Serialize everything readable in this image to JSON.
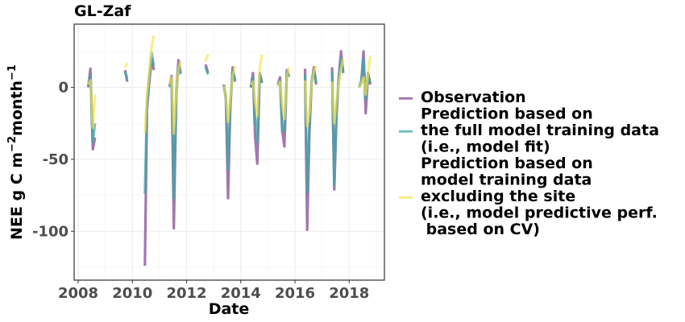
{
  "chart_data": {
    "type": "line",
    "title": "GL-Zaf",
    "xlabel": "Date",
    "ylabel": {
      "main": "NEE g C m",
      "sup1": "−2",
      "mid": "month",
      "sup2": "−1"
    },
    "xlim": [
      2007.85,
      2019.3
    ],
    "ylim": [
      -134,
      44
    ],
    "x_ticks": [
      2008,
      2010,
      2012,
      2014,
      2016,
      2018
    ],
    "x_tick_labels": [
      "2008",
      "2010",
      "2012",
      "2014",
      "2016",
      "2018"
    ],
    "y_ticks": [
      0,
      -50,
      -100
    ],
    "y_tick_labels": [
      "0",
      "-50",
      "-100"
    ],
    "grid": true,
    "legend_position": "right",
    "series": [
      {
        "name": "Observation",
        "color": "#7b3f8c",
        "opacity": 0.7,
        "segments": [
          [
            [
              2008.37,
              0
            ],
            [
              2008.45,
              13
            ],
            [
              2008.54,
              -43
            ],
            [
              2008.62,
              -35
            ]
          ],
          [
            [
              2009.73,
              12
            ],
            [
              2009.81,
              4
            ]
          ],
          [
            [
              2010.46,
              -124
            ],
            [
              2010.54,
              -15
            ],
            [
              2010.62,
              3
            ],
            [
              2010.71,
              20
            ],
            [
              2010.79,
              12
            ]
          ],
          [
            [
              2011.37,
              1
            ],
            [
              2011.45,
              8
            ],
            [
              2011.53,
              -98
            ],
            [
              2011.62,
              -2
            ],
            [
              2011.7,
              19
            ],
            [
              2011.78,
              10
            ]
          ],
          [
            [
              2012.7,
              16
            ],
            [
              2012.79,
              10
            ]
          ],
          [
            [
              2013.37,
              2
            ],
            [
              2013.45,
              -6
            ],
            [
              2013.53,
              -77
            ],
            [
              2013.61,
              -15
            ],
            [
              2013.7,
              14
            ],
            [
              2013.79,
              4
            ]
          ],
          [
            [
              2014.37,
              0
            ],
            [
              2014.45,
              10
            ],
            [
              2014.53,
              -35
            ],
            [
              2014.61,
              -53
            ],
            [
              2014.7,
              10
            ],
            [
              2014.78,
              3
            ]
          ],
          [
            [
              2015.37,
              2
            ],
            [
              2015.45,
              7
            ],
            [
              2015.53,
              -30
            ],
            [
              2015.61,
              -41
            ],
            [
              2015.7,
              12
            ],
            [
              2015.78,
              8
            ]
          ],
          [
            [
              2016.37,
              13
            ],
            [
              2016.45,
              -99
            ],
            [
              2016.53,
              -32
            ],
            [
              2016.61,
              3
            ],
            [
              2016.7,
              14
            ],
            [
              2016.78,
              2
            ]
          ],
          [
            [
              2017.37,
              14
            ],
            [
              2017.45,
              -71
            ],
            [
              2017.53,
              -20
            ],
            [
              2017.61,
              6
            ],
            [
              2017.7,
              25
            ],
            [
              2017.78,
              10
            ]
          ],
          [
            [
              2018.37,
              0
            ],
            [
              2018.45,
              4
            ],
            [
              2018.53,
              25
            ],
            [
              2018.61,
              -18
            ],
            [
              2018.7,
              10
            ],
            [
              2018.78,
              2
            ]
          ]
        ]
      },
      {
        "name": "Prediction based on the full model training data (i.e., model fit)",
        "color": "#3aa6a6",
        "opacity": 0.7,
        "segments": [
          [
            [
              2008.37,
              1
            ],
            [
              2008.45,
              8
            ],
            [
              2008.54,
              -38
            ],
            [
              2008.62,
              -25
            ]
          ],
          [
            [
              2009.73,
              11
            ],
            [
              2009.81,
              6
            ]
          ],
          [
            [
              2010.46,
              -74
            ],
            [
              2010.54,
              -12
            ],
            [
              2010.62,
              8
            ],
            [
              2010.71,
              24
            ],
            [
              2010.79,
              15
            ]
          ],
          [
            [
              2011.37,
              0
            ],
            [
              2011.45,
              4
            ],
            [
              2011.53,
              -77
            ],
            [
              2011.62,
              -6
            ],
            [
              2011.7,
              15
            ],
            [
              2011.78,
              9
            ]
          ],
          [
            [
              2012.7,
              14
            ],
            [
              2012.79,
              9
            ]
          ],
          [
            [
              2013.37,
              1
            ],
            [
              2013.45,
              -8
            ],
            [
              2013.53,
              -57
            ],
            [
              2013.61,
              -12
            ],
            [
              2013.7,
              12
            ],
            [
              2013.79,
              5
            ]
          ],
          [
            [
              2014.37,
              0
            ],
            [
              2014.45,
              7
            ],
            [
              2014.53,
              -21
            ],
            [
              2014.61,
              -38
            ],
            [
              2014.7,
              9
            ],
            [
              2014.78,
              4
            ]
          ],
          [
            [
              2015.37,
              1
            ],
            [
              2015.45,
              5
            ],
            [
              2015.53,
              -30
            ],
            [
              2015.61,
              -30
            ],
            [
              2015.7,
              10
            ],
            [
              2015.78,
              7
            ]
          ],
          [
            [
              2016.37,
              9
            ],
            [
              2016.45,
              -73
            ],
            [
              2016.53,
              -27
            ],
            [
              2016.61,
              4
            ],
            [
              2016.7,
              12
            ],
            [
              2016.78,
              3
            ]
          ],
          [
            [
              2017.37,
              11
            ],
            [
              2017.45,
              -68
            ],
            [
              2017.53,
              -16
            ],
            [
              2017.61,
              5
            ],
            [
              2017.7,
              20
            ],
            [
              2017.78,
              10
            ]
          ],
          [
            [
              2018.37,
              0
            ],
            [
              2018.45,
              5
            ],
            [
              2018.53,
              20
            ],
            [
              2018.61,
              -8
            ],
            [
              2018.7,
              9
            ],
            [
              2018.78,
              3
            ]
          ]
        ]
      },
      {
        "name": "Prediction based on model training data excluding the site (i.e., model predictive perf. based on CV)",
        "color": "#f5e34a",
        "opacity": 0.65,
        "segments": [
          [
            [
              2008.37,
              2
            ],
            [
              2008.45,
              5
            ],
            [
              2008.54,
              -28
            ],
            [
              2008.62,
              -5
            ]
          ],
          [
            [
              2009.73,
              14
            ],
            [
              2009.81,
              17
            ]
          ],
          [
            [
              2010.46,
              -32
            ],
            [
              2010.54,
              -5
            ],
            [
              2010.62,
              10
            ],
            [
              2010.71,
              28
            ],
            [
              2010.79,
              36
            ]
          ],
          [
            [
              2011.37,
              2
            ],
            [
              2011.45,
              7
            ],
            [
              2011.53,
              -32
            ],
            [
              2011.62,
              -2
            ],
            [
              2011.7,
              13
            ],
            [
              2011.78,
              18
            ]
          ],
          [
            [
              2012.7,
              18
            ],
            [
              2012.79,
              23
            ]
          ],
          [
            [
              2013.37,
              1
            ],
            [
              2013.45,
              -6
            ],
            [
              2013.53,
              -24
            ],
            [
              2013.61,
              -8
            ],
            [
              2013.7,
              8
            ],
            [
              2013.79,
              15
            ]
          ],
          [
            [
              2014.37,
              2
            ],
            [
              2014.45,
              4
            ],
            [
              2014.53,
              -10
            ],
            [
              2014.61,
              -20
            ],
            [
              2014.7,
              13
            ],
            [
              2014.78,
              23
            ]
          ],
          [
            [
              2015.37,
              1
            ],
            [
              2015.45,
              4
            ],
            [
              2015.53,
              -12
            ],
            [
              2015.61,
              -22
            ],
            [
              2015.7,
              7
            ],
            [
              2015.78,
              14
            ]
          ],
          [
            [
              2016.37,
              5
            ],
            [
              2016.45,
              -27
            ],
            [
              2016.53,
              -18
            ],
            [
              2016.61,
              3
            ],
            [
              2016.7,
              11
            ],
            [
              2016.78,
              15
            ]
          ],
          [
            [
              2017.37,
              4
            ],
            [
              2017.45,
              -25
            ],
            [
              2017.53,
              -10
            ],
            [
              2017.61,
              2
            ],
            [
              2017.7,
              13
            ],
            [
              2017.78,
              20
            ]
          ],
          [
            [
              2018.37,
              0
            ],
            [
              2018.45,
              3
            ],
            [
              2018.53,
              7
            ],
            [
              2018.61,
              -5
            ],
            [
              2018.7,
              10
            ],
            [
              2018.78,
              22
            ]
          ]
        ]
      }
    ],
    "legend": [
      {
        "lines": [
          "Observation"
        ],
        "color": "#7b3f8c"
      },
      {
        "lines": [
          "Prediction based on",
          "the full model training data",
          "(i.e., model fit)"
        ],
        "color": "#3aa6a6"
      },
      {
        "lines": [
          "Prediction based on",
          "model training data",
          "excluding the site",
          "(i.e., model predictive perf.",
          " based on CV)"
        ],
        "color": "#f5e34a"
      }
    ]
  }
}
